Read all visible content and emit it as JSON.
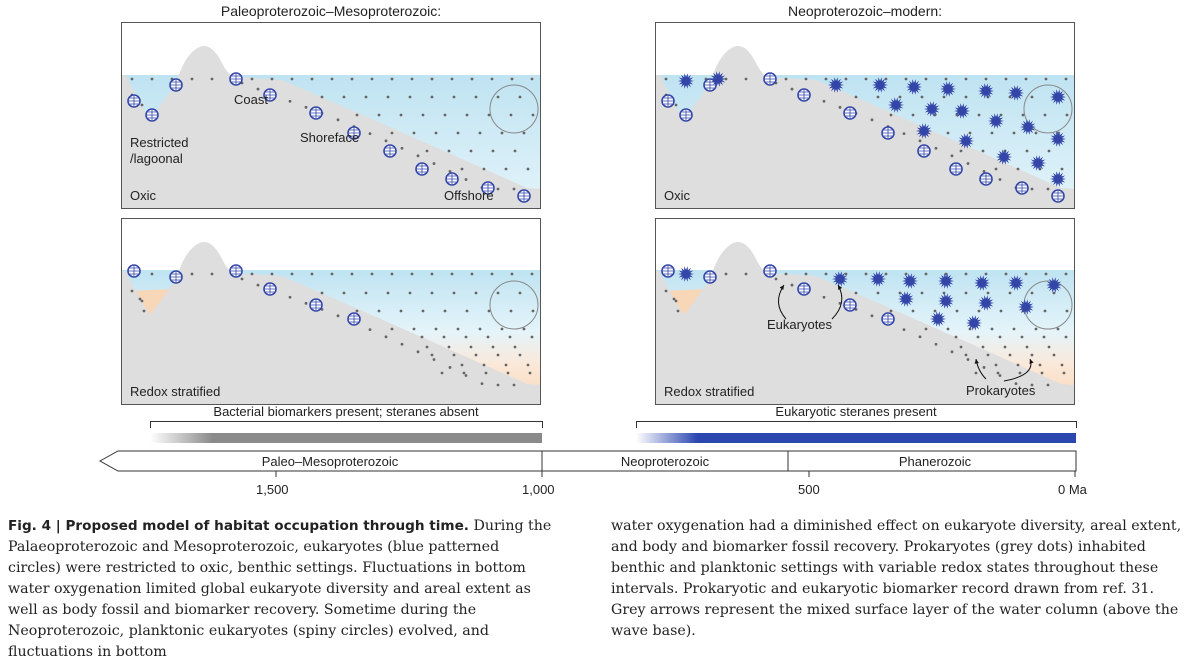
{
  "periods": {
    "left_title": "Paleoproterozoic–Mesoproterozoic:",
    "right_title": "Neoproterozoic–modern:"
  },
  "panels": {
    "tl": {
      "condition": "Oxic",
      "labels": {
        "restricted": "Restricted\n/lagoonal",
        "coast": "Coast",
        "shoreface": "Shoreface",
        "offshore": "Offshore"
      }
    },
    "tr": {
      "condition": "Oxic"
    },
    "bl": {
      "condition": "Redox stratified"
    },
    "br": {
      "condition": "Redox stratified",
      "labels": {
        "eukaryotes": "Eukaryotes",
        "prokaryotes": "Prokaryotes"
      }
    }
  },
  "biomarkers": {
    "left": "Bacterial biomarkers present; steranes absent",
    "right": "Eukaryotic steranes present"
  },
  "timeline": {
    "segments": [
      "Paleo–Mesoproterozoic",
      "Neoproterozoic",
      "Phanerozoic"
    ],
    "ticks": [
      "1,500",
      "1,000",
      "500",
      "0 Ma"
    ]
  },
  "caption": {
    "fig_label": "Fig. 4 | Proposed model of habitat occupation through time.",
    "left_text": " During the Palaeoproterozoic and Mesoproterozoic, eukaryotes (blue patterned circles) were restricted to oxic, benthic settings. Fluctuations in bottom water oxygenation limited global eukaryote diversity and areal extent as well as body fossil and biomarker recovery. Sometime during the Neoproterozoic, planktonic eukaryotes (spiny circles) evolved, and fluctuations in bottom",
    "right_text": "water oxygenation had a diminished effect on eukaryote diversity, areal extent, and body and biomarker fossil recovery. Prokaryotes (grey dots) inhabited benthic and planktonic settings with variable redox states throughout these intervals. Prokaryotic and eukaryotic biomarker record drawn from ref. 31. Grey arrows represent the mixed surface layer of the water column (above the wave base)."
  },
  "colors": {
    "water_top": "#bfe3f2",
    "water_bottom": "#e4f4fa",
    "land": "#dedede",
    "anoxic": "#f8d6b8",
    "eukaryote": "#3346a8",
    "prokaryote": "#666666",
    "bar_blue": "#2c46b0",
    "bar_grey": "#8a8a8a"
  }
}
